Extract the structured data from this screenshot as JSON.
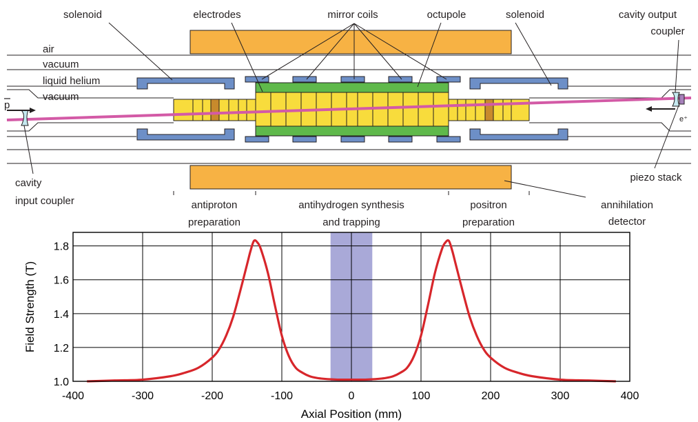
{
  "diagram": {
    "labels": {
      "solenoid_left": "solenoid",
      "electrodes": "electrodes",
      "mirror_coils": "mirror coils",
      "octupole": "octupole",
      "solenoid_right": "solenoid",
      "cavity_output_line1": "cavity output",
      "cavity_output_line2": "coupler",
      "air": "air",
      "vacuum_top": "vacuum",
      "liquid_helium": "liquid helium",
      "vacuum_inner": "vacuum",
      "pbar": "p",
      "positron": "e⁺",
      "piezo": "piezo stack",
      "cavity_input_line1": "cavity",
      "cavity_input_line2": "input coupler",
      "antiproton_line1": "antiproton",
      "antiproton_line2": "preparation",
      "synthesis_line1": "antihydrogen synthesis",
      "synthesis_line2": "and trapping",
      "positron_line1": "positron",
      "positron_line2": "preparation",
      "annihilation_line1": "annihilation",
      "annihilation_line2": "detector"
    },
    "colors": {
      "solenoid": "#f7b244",
      "coil": "#6d8fc7",
      "octupole": "#5fb94b",
      "electrode": "#f8dc3c",
      "electrode_dark": "#c88a2c",
      "beam": "#d35aa6",
      "coupler": "#c5e8ef",
      "piezo": "#a781bb",
      "lines": "#231f20"
    }
  },
  "chart_data": {
    "type": "line",
    "xlabel": "Axial Position (mm)",
    "ylabel": "Field Strength (T)",
    "xlim": [
      -400,
      400
    ],
    "ylim": [
      1.0,
      1.88
    ],
    "xticks": [
      -400,
      -300,
      -200,
      -100,
      0,
      100,
      200,
      300,
      400
    ],
    "xtick_labels": [
      "-400",
      "-300",
      "-200",
      "-100",
      "0",
      "100",
      "200",
      "300",
      "400"
    ],
    "yticks": [
      1.0,
      1.2,
      1.4,
      1.6,
      1.8
    ],
    "ytick_labels": [
      "1.0",
      "1.2",
      "1.4",
      "1.6",
      "1.8"
    ],
    "grid": true,
    "shaded_region": {
      "x": [
        -30,
        30
      ],
      "color": "#a9a9d8"
    },
    "series": [
      {
        "color": "#d7262b",
        "x": [
          -380,
          -340,
          -300,
          -260,
          -240,
          -220,
          -200,
          -190,
          -180,
          -170,
          -160,
          -150,
          -145,
          -140,
          -135,
          -130,
          -120,
          -110,
          -100,
          -90,
          -80,
          -70,
          -60,
          -50,
          -40,
          -20,
          0,
          20,
          40,
          50,
          60,
          70,
          80,
          90,
          100,
          110,
          120,
          130,
          135,
          140,
          145,
          150,
          160,
          170,
          180,
          190,
          200,
          220,
          240,
          260,
          300,
          340,
          380
        ],
        "y": [
          1.0,
          1.005,
          1.01,
          1.03,
          1.05,
          1.08,
          1.14,
          1.19,
          1.27,
          1.38,
          1.53,
          1.69,
          1.77,
          1.83,
          1.82,
          1.78,
          1.64,
          1.45,
          1.27,
          1.15,
          1.08,
          1.05,
          1.03,
          1.02,
          1.015,
          1.01,
          1.01,
          1.01,
          1.015,
          1.02,
          1.03,
          1.05,
          1.08,
          1.15,
          1.27,
          1.45,
          1.64,
          1.78,
          1.82,
          1.83,
          1.77,
          1.69,
          1.53,
          1.38,
          1.27,
          1.19,
          1.14,
          1.08,
          1.05,
          1.03,
          1.01,
          1.005,
          1.0
        ]
      }
    ]
  }
}
